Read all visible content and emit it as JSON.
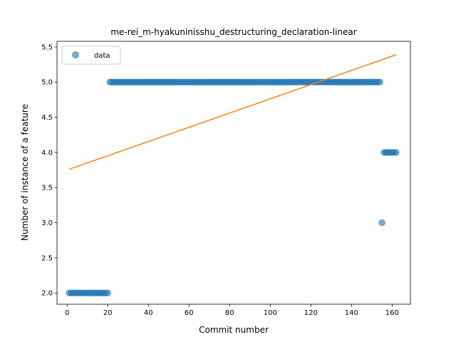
{
  "chart_data": {
    "type": "scatter",
    "title": "me-rei_m-hyakuninisshu_destructuring_declaration-linear",
    "xlabel": "Commit number",
    "ylabel": "Number of instance of a feature",
    "xlim": [
      -5,
      169
    ],
    "ylim": [
      1.84,
      5.58
    ],
    "xticks": [
      0,
      20,
      40,
      60,
      80,
      100,
      120,
      140,
      160
    ],
    "yticks": [
      2.0,
      2.5,
      3.0,
      3.5,
      4.0,
      4.5,
      5.0,
      5.5
    ],
    "ytick_labels": [
      "2.0",
      "2.5",
      "3.0",
      "3.5",
      "4.0",
      "4.5",
      "5.0",
      "5.5"
    ],
    "legend": {
      "position": "upper-left",
      "entries": [
        {
          "label": "data"
        }
      ]
    },
    "series": [
      {
        "name": "data",
        "kind": "points",
        "color": "#1f77b4",
        "segments": [
          {
            "x_from": 1,
            "x_to": 20,
            "y": 2
          },
          {
            "x_from": 21,
            "x_to": 154,
            "y": 5
          },
          {
            "x_from": 155,
            "x_to": 155,
            "y": 3
          },
          {
            "x_from": 156,
            "x_to": 162,
            "y": 4
          }
        ]
      },
      {
        "name": "linear",
        "kind": "line",
        "color": "#ff7f0e",
        "points": [
          {
            "x": 1,
            "y": 3.76
          },
          {
            "x": 162,
            "y": 5.39
          }
        ]
      }
    ]
  }
}
